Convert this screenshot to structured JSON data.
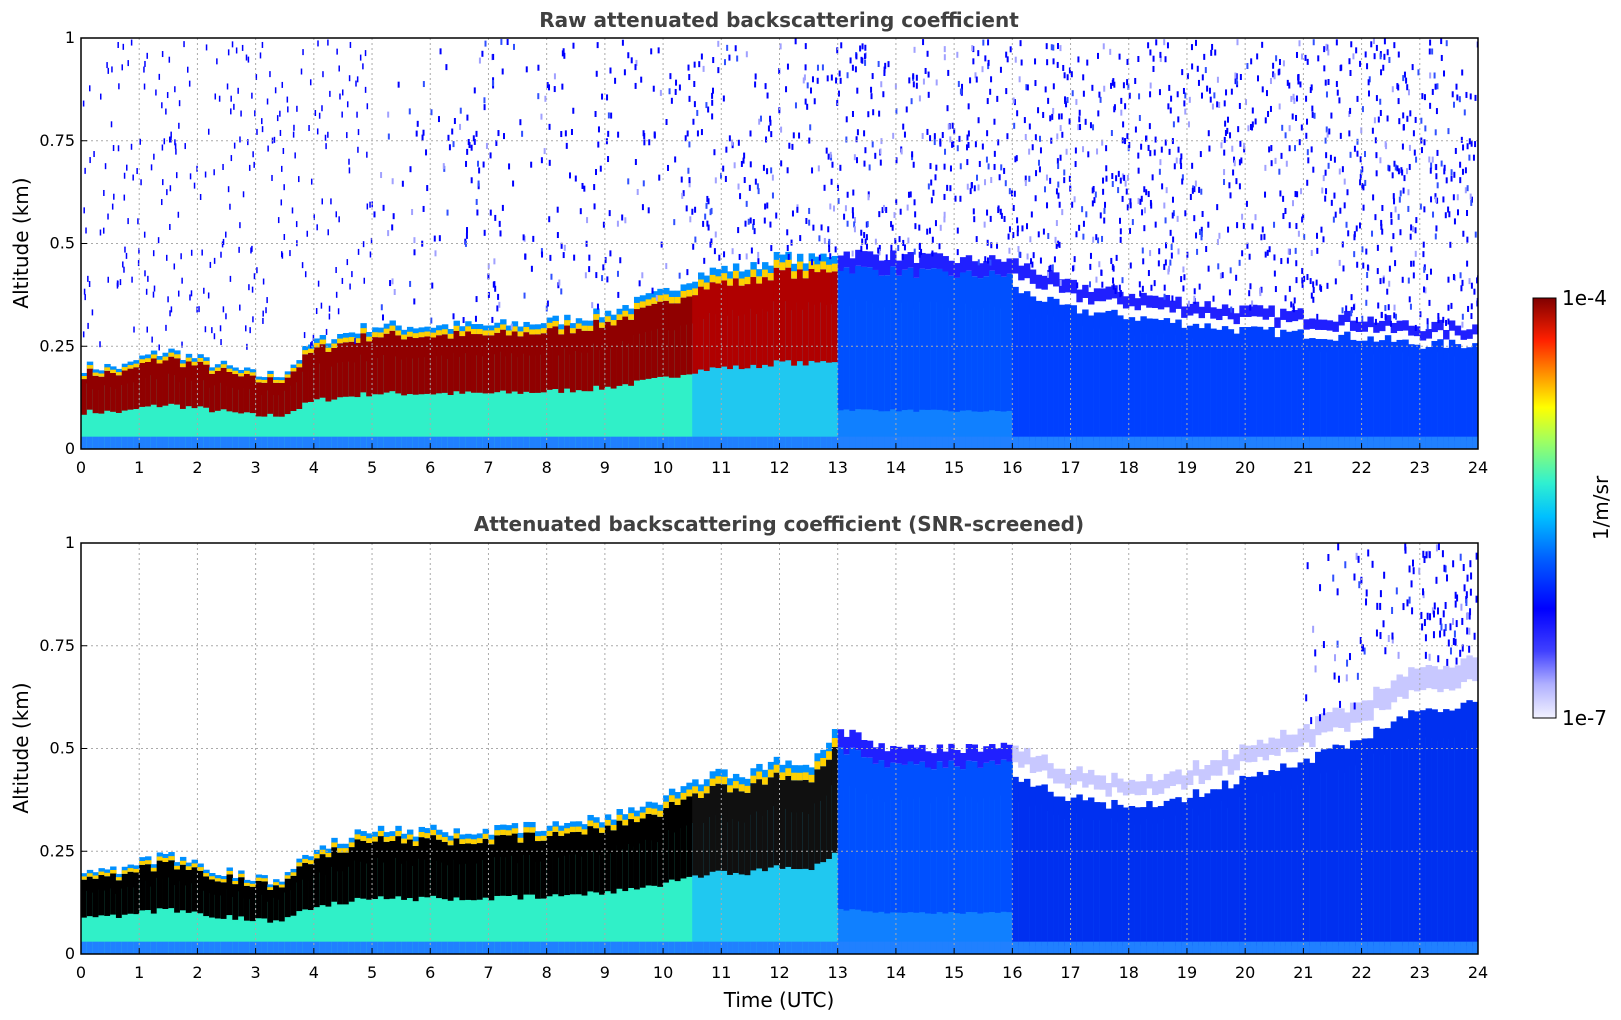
{
  "chart_data": [
    {
      "type": "heatmap",
      "title": "Raw attenuated backscattering coefficient",
      "xlabel": "",
      "ylabel": "Altitude (km)",
      "xlim": [
        0,
        24
      ],
      "ylim": [
        0,
        1
      ],
      "x_ticks": [
        "0",
        "1",
        "2",
        "3",
        "4",
        "5",
        "6",
        "7",
        "8",
        "9",
        "10",
        "11",
        "12",
        "13",
        "14",
        "15",
        "16",
        "17",
        "18",
        "19",
        "20",
        "21",
        "22",
        "23",
        "24"
      ],
      "y_ticks": [
        "0",
        "0.25",
        "0.5",
        "0.75",
        "1"
      ],
      "grid": true,
      "layer_top_km": {
        "time_utc": [
          0,
          0.8,
          1,
          1.5,
          2,
          2.5,
          3,
          3.4,
          3.6,
          4,
          5,
          6,
          7,
          8,
          9,
          10,
          10.5,
          11,
          11.5,
          12,
          12.5,
          13,
          14,
          15,
          16,
          17,
          18,
          19,
          20,
          21,
          22,
          23,
          24
        ],
        "value": [
          0.2,
          0.2,
          0.22,
          0.24,
          0.22,
          0.2,
          0.18,
          0.18,
          0.2,
          0.26,
          0.3,
          0.3,
          0.3,
          0.31,
          0.33,
          0.38,
          0.42,
          0.44,
          0.44,
          0.47,
          0.46,
          0.48,
          0.47,
          0.46,
          0.46,
          0.4,
          0.38,
          0.36,
          0.34,
          0.33,
          0.32,
          0.3,
          0.3
        ]
      },
      "noise_fill_from_utc": 5
    },
    {
      "type": "heatmap",
      "title": "Attenuated backscattering coefficient (SNR-screened)",
      "xlabel": "Time (UTC)",
      "ylabel": "Altitude (km)",
      "xlim": [
        0,
        24
      ],
      "ylim": [
        0,
        1
      ],
      "x_ticks": [
        "0",
        "1",
        "2",
        "3",
        "4",
        "5",
        "6",
        "7",
        "8",
        "9",
        "10",
        "11",
        "12",
        "13",
        "14",
        "15",
        "16",
        "17",
        "18",
        "19",
        "20",
        "21",
        "22",
        "23",
        "24"
      ],
      "y_ticks": [
        "0",
        "0.25",
        "0.5",
        "0.75",
        "1"
      ],
      "grid": true,
      "layer_top_km": {
        "time_utc": [
          0,
          0.8,
          1,
          1.5,
          2,
          2.5,
          3,
          3.4,
          3.6,
          4,
          5,
          6,
          7,
          8,
          9,
          10,
          10.5,
          11,
          11.5,
          12,
          12.5,
          13,
          14,
          15,
          16,
          17,
          18,
          19,
          20,
          21,
          22,
          23,
          24
        ],
        "value": [
          0.2,
          0.2,
          0.22,
          0.24,
          0.22,
          0.2,
          0.18,
          0.18,
          0.2,
          0.26,
          0.3,
          0.3,
          0.3,
          0.31,
          0.33,
          0.38,
          0.42,
          0.44,
          0.44,
          0.47,
          0.46,
          0.55,
          0.5,
          0.5,
          0.5,
          0.45,
          0.42,
          0.45,
          0.5,
          0.55,
          0.62,
          0.7,
          0.72
        ]
      }
    }
  ],
  "colorbar": {
    "label": "1/m/sr",
    "max_label": "1e-4",
    "min_label": "1e-7",
    "scale": "log",
    "colors": [
      "#eef0ff",
      "#c8c8ff",
      "#8a8aff",
      "#3a3aff",
      "#0000ff",
      "#0040ff",
      "#0090ff",
      "#00d0ff",
      "#20f0e0",
      "#60ffa0",
      "#b0ff50",
      "#ffff00",
      "#ffc000",
      "#ff8000",
      "#ff3000",
      "#d00000",
      "#800000"
    ]
  }
}
